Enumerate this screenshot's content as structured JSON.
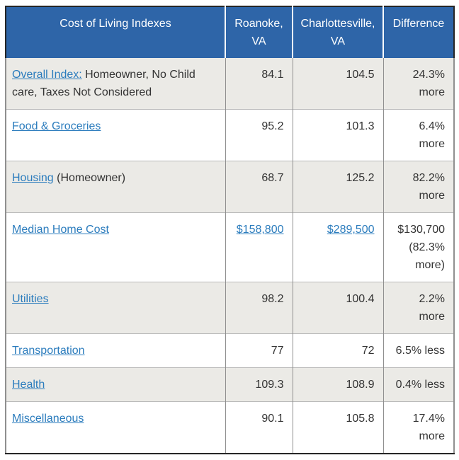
{
  "colors": {
    "header_bg": "#2e65a8",
    "header_text": "#ffffff",
    "link_blue": "#2b7cbd",
    "shaded_row_bg": "#ebeae6",
    "row_text": "#333333"
  },
  "table": {
    "header": [
      "Cost of Living Indexes",
      "Roanoke, VA",
      "Charlottesville, VA",
      "Difference"
    ],
    "rows": [
      {
        "label_link": "Overall Index:",
        "label_suffix": " Homeowner, No Child care, Taxes Not Considered",
        "roanoke": "84.1",
        "charlottesville": "104.5",
        "difference": "24.3% more",
        "values_are_links": false
      },
      {
        "label_link": "Food & Groceries",
        "label_suffix": "",
        "roanoke": "95.2",
        "charlottesville": "101.3",
        "difference": "6.4% more",
        "values_are_links": false
      },
      {
        "label_link": "Housing",
        "label_suffix": " (Homeowner)",
        "roanoke": "68.7",
        "charlottesville": "125.2",
        "difference": "82.2% more",
        "values_are_links": false
      },
      {
        "label_link": "Median Home Cost",
        "label_suffix": "",
        "roanoke": "$158,800",
        "charlottesville": "$289,500",
        "difference": "$130,700 (82.3% more)",
        "values_are_links": true
      },
      {
        "label_link": "Utilities",
        "label_suffix": "",
        "roanoke": "98.2",
        "charlottesville": "100.4",
        "difference": "2.2% more",
        "values_are_links": false
      },
      {
        "label_link": "Transportation",
        "label_suffix": "",
        "roanoke": "77",
        "charlottesville": "72",
        "difference": "6.5% less",
        "values_are_links": false
      },
      {
        "label_link": "Health",
        "label_suffix": "",
        "roanoke": "109.3",
        "charlottesville": "108.9",
        "difference": "0.4% less",
        "values_are_links": false
      },
      {
        "label_link": "Miscellaneous",
        "label_suffix": "",
        "roanoke": "90.1",
        "charlottesville": "105.8",
        "difference": "17.4% more",
        "values_are_links": false
      }
    ]
  }
}
